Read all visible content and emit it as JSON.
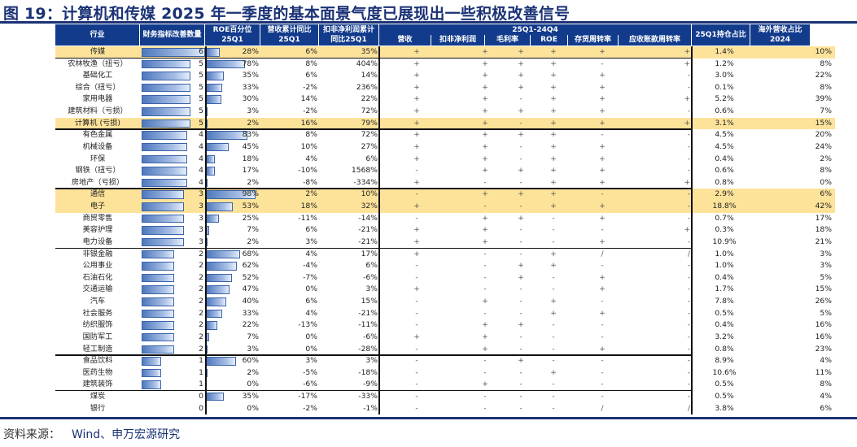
{
  "title": "图 19：计算机和传媒 2025 年一季度的基本面景气度已展现出一些积极改善信号",
  "source": {
    "label": "资料来源：",
    "text": "Wind、申万宏源研究"
  },
  "header": {
    "industry": "行业",
    "improve_count": "财务指标改善数量",
    "roe_pct": "ROE百分位\n25Q1",
    "rev_yoy": "营收累计同比\n25Q1",
    "np_yoy": "扣非净利润累计\n同比25Q1",
    "group": "25Q1-24Q4",
    "sub": [
      "营收",
      "扣非净利润",
      "毛利率",
      "ROE",
      "存货周转率",
      "应收账款周转率"
    ],
    "holding": "25Q1持仓占比",
    "overseas": "海外营收占比\n2024"
  },
  "colors": {
    "header_bg": "#123b8c",
    "highlight": "#fde39a",
    "bar": "#4e78bd",
    "title": "#1a3275"
  },
  "rows": [
    {
      "name": "传媒",
      "count": 6,
      "roe": "28%",
      "rev": "6%",
      "np": "35%",
      "sig": [
        "+",
        "+",
        "+",
        "+",
        "+",
        "+"
      ],
      "hold": "1.4%",
      "ovs": "10%",
      "hl": true
    },
    {
      "name": "农林牧渔（扭亏）",
      "count": 5,
      "roe": "78%",
      "rev": "8%",
      "np": "404%",
      "sig": [
        "+",
        "+",
        "+",
        "+",
        "-",
        "+"
      ],
      "hold": "1.2%",
      "ovs": "8%"
    },
    {
      "name": "基础化工",
      "count": 5,
      "roe": "35%",
      "rev": "6%",
      "np": "14%",
      "sig": [
        "+",
        "+",
        "+",
        "+",
        "+",
        "-"
      ],
      "hold": "3.0%",
      "ovs": "22%"
    },
    {
      "name": "综合（扭亏）",
      "count": 5,
      "roe": "33%",
      "rev": "-2%",
      "np": "236%",
      "sig": [
        "+",
        "+",
        "+",
        "+",
        "+",
        "-"
      ],
      "hold": "0.1%",
      "ovs": "8%"
    },
    {
      "name": "家用电器",
      "count": 5,
      "roe": "30%",
      "rev": "14%",
      "np": "22%",
      "sig": [
        "+",
        "+",
        "-",
        "+",
        "+",
        "+"
      ],
      "hold": "5.2%",
      "ovs": "39%"
    },
    {
      "name": "建筑材料（亏损）",
      "count": 5,
      "roe": "3%",
      "rev": "-2%",
      "np": "72%",
      "sig": [
        "+",
        "+",
        "+",
        "+",
        "+",
        "-"
      ],
      "hold": "0.6%",
      "ovs": "7%"
    },
    {
      "name": "计算机 (亏损)",
      "count": 5,
      "roe": "2%",
      "rev": "16%",
      "np": "79%",
      "sig": [
        "+",
        "+",
        "-",
        "+",
        "+",
        "+"
      ],
      "hold": "3.1%",
      "ovs": "15%",
      "hl": true
    },
    {
      "name": "有色金属",
      "count": 4,
      "roe": "83%",
      "rev": "8%",
      "np": "72%",
      "sig": [
        "+",
        "+",
        "+",
        "+",
        "-",
        "-"
      ],
      "hold": "4.5%",
      "ovs": "20%"
    },
    {
      "name": "机械设备",
      "count": 4,
      "roe": "45%",
      "rev": "10%",
      "np": "27%",
      "sig": [
        "+",
        "+",
        "-",
        "+",
        "+",
        "-"
      ],
      "hold": "4.5%",
      "ovs": "24%"
    },
    {
      "name": "环保",
      "count": 4,
      "roe": "18%",
      "rev": "4%",
      "np": "6%",
      "sig": [
        "+",
        "+",
        "-",
        "+",
        "+",
        "-"
      ],
      "hold": "0.4%",
      "ovs": "2%"
    },
    {
      "name": "钢铁（扭亏）",
      "count": 4,
      "roe": "17%",
      "rev": "-10%",
      "np": "1568%",
      "sig": [
        "-",
        "+",
        "+",
        "+",
        "+",
        "-"
      ],
      "hold": "0.6%",
      "ovs": "8%"
    },
    {
      "name": "房地产（亏损）",
      "count": 4,
      "roe": "2%",
      "rev": "-8%",
      "np": "-334%",
      "sig": [
        "+",
        "-",
        "-",
        "+",
        "+",
        "+"
      ],
      "hold": "0.8%",
      "ovs": "0%"
    },
    {
      "name": "通信",
      "count": 3,
      "roe": "98%",
      "rev": "2%",
      "np": "10%",
      "sig": [
        "-",
        "+",
        "+",
        "+",
        "-",
        "-"
      ],
      "hold": "2.9%",
      "ovs": "6%",
      "hl": true
    },
    {
      "name": "电子",
      "count": 3,
      "roe": "53%",
      "rev": "18%",
      "np": "32%",
      "sig": [
        "+",
        "-",
        "-",
        "+",
        "+",
        "-"
      ],
      "hold": "18.8%",
      "ovs": "42%",
      "hl": true
    },
    {
      "name": "商贸零售",
      "count": 3,
      "roe": "25%",
      "rev": "-11%",
      "np": "-14%",
      "sig": [
        "-",
        "+",
        "+",
        "-",
        "+",
        "-"
      ],
      "hold": "0.7%",
      "ovs": "17%"
    },
    {
      "name": "美容护理",
      "count": 3,
      "roe": "7%",
      "rev": "6%",
      "np": "-21%",
      "sig": [
        "+",
        "+",
        "-",
        "-",
        "-",
        "+"
      ],
      "hold": "0.3%",
      "ovs": "18%"
    },
    {
      "name": "电力设备",
      "count": 3,
      "roe": "2%",
      "rev": "3%",
      "np": "-21%",
      "sig": [
        "+",
        "+",
        "-",
        "-",
        "+",
        "-"
      ],
      "hold": "10.9%",
      "ovs": "21%"
    },
    {
      "name": "非银金融",
      "count": 2,
      "roe": "68%",
      "rev": "4%",
      "np": "17%",
      "sig": [
        "+",
        "-",
        "-",
        "+",
        "/",
        "/"
      ],
      "hold": "1.0%",
      "ovs": "3%"
    },
    {
      "name": "公用事业",
      "count": 2,
      "roe": "62%",
      "rev": "-4%",
      "np": "6%",
      "sig": [
        "-",
        "-",
        "+",
        "+",
        "-",
        "-"
      ],
      "hold": "1.0%",
      "ovs": "3%"
    },
    {
      "name": "石油石化",
      "count": 2,
      "roe": "52%",
      "rev": "-7%",
      "np": "-6%",
      "sig": [
        "-",
        "-",
        "+",
        "-",
        "+",
        "-"
      ],
      "hold": "0.4%",
      "ovs": "5%"
    },
    {
      "name": "交通运输",
      "count": 2,
      "roe": "47%",
      "rev": "0%",
      "np": "3%",
      "sig": [
        "+",
        "-",
        "-",
        "-",
        "+",
        "-"
      ],
      "hold": "1.7%",
      "ovs": "15%"
    },
    {
      "name": "汽车",
      "count": 2,
      "roe": "40%",
      "rev": "6%",
      "np": "15%",
      "sig": [
        "-",
        "+",
        "-",
        "+",
        "-",
        "-"
      ],
      "hold": "7.8%",
      "ovs": "26%"
    },
    {
      "name": "社会服务",
      "count": 2,
      "roe": "33%",
      "rev": "4%",
      "np": "-21%",
      "sig": [
        "-",
        "-",
        "-",
        "+",
        "+",
        "-"
      ],
      "hold": "0.5%",
      "ovs": "5%"
    },
    {
      "name": "纺织服饰",
      "count": 2,
      "roe": "22%",
      "rev": "-13%",
      "np": "-11%",
      "sig": [
        "-",
        "+",
        "+",
        "-",
        "-",
        "-"
      ],
      "hold": "0.4%",
      "ovs": "16%"
    },
    {
      "name": "国防军工",
      "count": 2,
      "roe": "7%",
      "rev": "0%",
      "np": "-6%",
      "sig": [
        "+",
        "+",
        "-",
        "-",
        "-",
        "-"
      ],
      "hold": "3.2%",
      "ovs": "16%"
    },
    {
      "name": "轻工制造",
      "count": 2,
      "roe": "3%",
      "rev": "0%",
      "np": "-28%",
      "sig": [
        "-",
        "+",
        "-",
        "-",
        "+",
        "-"
      ],
      "hold": "0.8%",
      "ovs": "23%"
    },
    {
      "name": "食品饮料",
      "count": 1,
      "roe": "60%",
      "rev": "3%",
      "np": "3%",
      "sig": [
        "-",
        "-",
        "+",
        "-",
        "-",
        "-"
      ],
      "hold": "8.9%",
      "ovs": "4%"
    },
    {
      "name": "医药生物",
      "count": 1,
      "roe": "2%",
      "rev": "-5%",
      "np": "-18%",
      "sig": [
        "-",
        "-",
        "-",
        "+",
        "-",
        "-"
      ],
      "hold": "10.6%",
      "ovs": "11%"
    },
    {
      "name": "建筑装饰",
      "count": 1,
      "roe": "0%",
      "rev": "-6%",
      "np": "-9%",
      "sig": [
        "-",
        "+",
        "-",
        "-",
        "-",
        "-"
      ],
      "hold": "0.5%",
      "ovs": "8%"
    },
    {
      "name": "煤炭",
      "count": 0,
      "roe": "35%",
      "rev": "-17%",
      "np": "-33%",
      "sig": [
        "-",
        "-",
        "-",
        "-",
        "-",
        "-"
      ],
      "hold": "0.5%",
      "ovs": "4%"
    },
    {
      "name": "银行",
      "count": 0,
      "roe": "0%",
      "rev": "-2%",
      "np": "-1%",
      "sig": [
        "-",
        "-",
        "-",
        "-",
        "/",
        "/"
      ],
      "hold": "3.8%",
      "ovs": "6%"
    }
  ]
}
